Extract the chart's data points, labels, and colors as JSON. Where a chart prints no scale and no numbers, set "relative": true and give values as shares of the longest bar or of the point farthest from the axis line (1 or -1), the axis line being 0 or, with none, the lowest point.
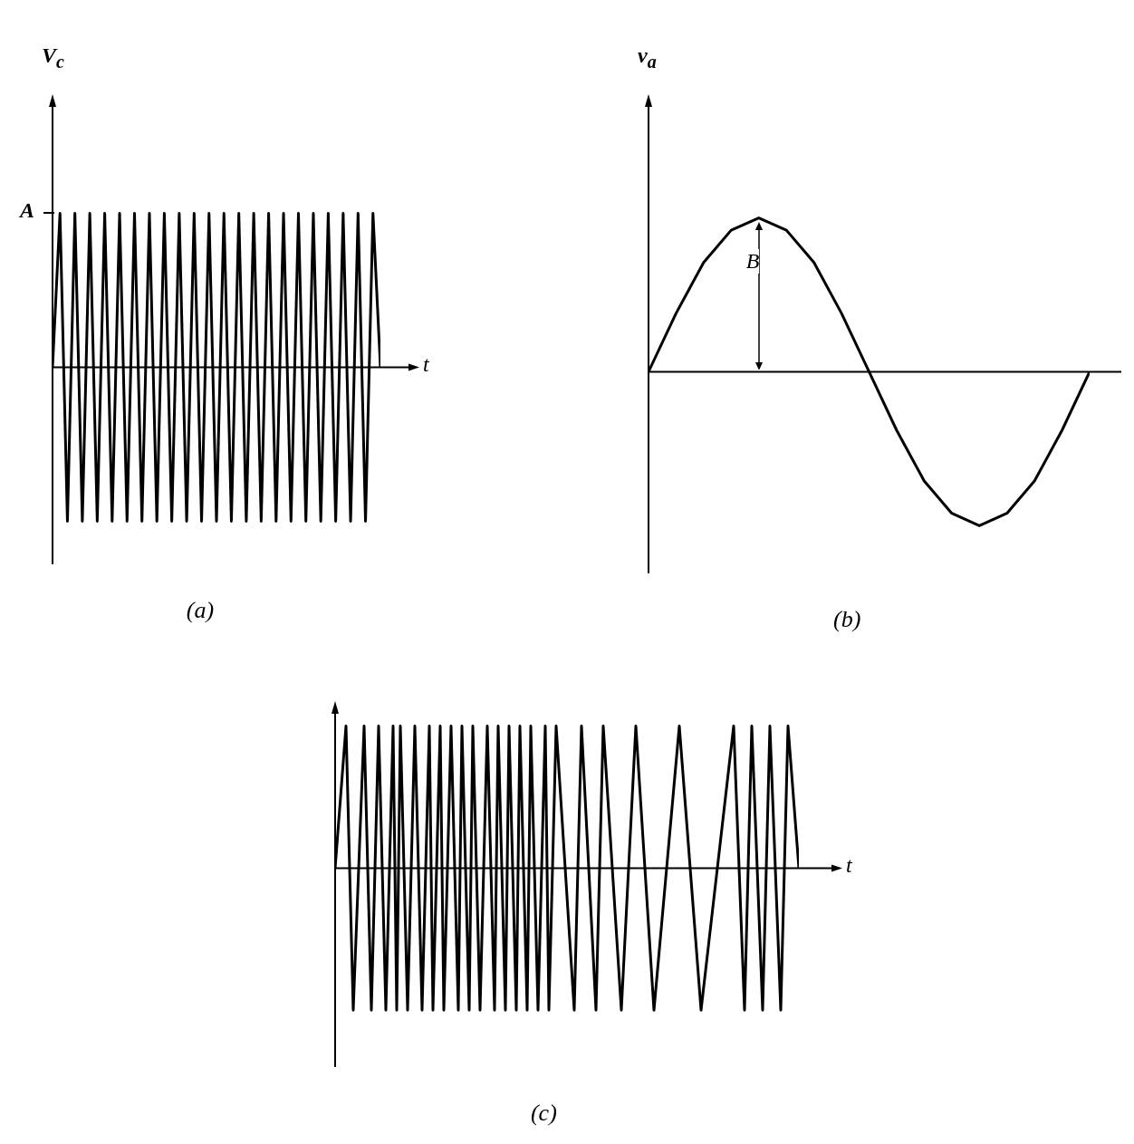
{
  "chart_data": [
    {
      "type": "line",
      "title": "(a)",
      "ylabel": "V$_{c}$",
      "xlabel": "t",
      "relative": true,
      "annotations": [
        "A"
      ],
      "categories": [
        null,
        null,
        null,
        null,
        null,
        null,
        null,
        null,
        null,
        null,
        null,
        null,
        null,
        null,
        null,
        null,
        null,
        null,
        null,
        null,
        null,
        null,
        null,
        null,
        null,
        null,
        null,
        null,
        null,
        null,
        null,
        null,
        null,
        null,
        null,
        null,
        null,
        null,
        null,
        null,
        null,
        null,
        null,
        null,
        null
      ],
      "series": [
        {
          "color": "#000000",
          "values": [
            0,
            1,
            -1,
            1,
            -1,
            1,
            -1,
            1,
            -1,
            1,
            -1,
            1,
            -1,
            1,
            -1,
            1,
            -1,
            1,
            -1,
            1,
            -1,
            1,
            -1,
            1,
            -1,
            1,
            -1,
            1,
            -1,
            1,
            -1,
            1,
            -1,
            1,
            -1,
            1,
            -1,
            1,
            -1,
            1,
            -1,
            1,
            -1,
            1,
            0
          ]
        }
      ]
    },
    {
      "type": "line",
      "title": "(b)",
      "ylabel": "v$_{a}$",
      "relative": true,
      "annotations": [
        "B"
      ],
      "categories": [
        null,
        null,
        null,
        null,
        null,
        null,
        null,
        null,
        null,
        null,
        null,
        null,
        null,
        null,
        null,
        null,
        null
      ],
      "series": [
        {
          "color": "#000000",
          "values": [
            0,
            0.38,
            0.71,
            0.92,
            1,
            0.92,
            0.71,
            0.38,
            0,
            -0.38,
            -0.71,
            -0.92,
            -1,
            -0.92,
            -0.71,
            -0.38,
            0
          ]
        }
      ]
    },
    {
      "type": "line",
      "title": "(c)",
      "xlabel": "t",
      "relative": true,
      "categories": [
        null,
        null,
        null,
        null,
        null,
        null,
        null,
        null,
        null,
        null,
        null,
        null,
        null,
        null,
        null,
        null,
        null,
        null,
        null,
        null,
        null,
        null,
        null,
        null,
        null,
        null,
        null,
        null,
        null,
        null,
        null,
        null,
        null,
        null,
        null,
        null,
        null,
        null,
        null,
        null,
        null,
        null,
        null,
        null,
        null,
        null,
        null,
        null,
        null,
        null,
        null,
        null,
        null,
        null,
        null,
        null,
        null,
        null,
        null,
        null,
        null,
        null,
        null,
        null,
        null,
        null,
        null,
        null,
        null,
        null,
        null,
        null,
        null,
        null,
        null,
        null,
        null,
        null,
        null,
        null,
        null,
        null,
        null,
        null,
        null,
        null,
        null,
        null,
        null,
        null,
        null,
        null,
        null,
        null,
        null,
        null,
        null,
        null,
        null,
        null,
        null,
        null,
        null,
        null,
        null,
        null,
        null,
        null,
        null,
        null,
        null,
        null,
        null,
        null,
        null,
        null,
        null,
        null,
        null,
        null,
        null,
        null,
        null,
        null,
        null,
        null,
        null,
        null,
        null
      ],
      "series": [
        {
          "color": "#000000",
          "values": [
            0,
            null,
            null,
            1,
            null,
            -1,
            null,
            null,
            1,
            null,
            -1,
            null,
            1,
            null,
            -1,
            null,
            1,
            -1,
            1,
            null,
            -1,
            null,
            1,
            null,
            -1,
            null,
            1,
            -1,
            null,
            1,
            -1,
            null,
            1,
            null,
            -1,
            1,
            null,
            -1,
            1,
            null,
            -1,
            null,
            1,
            null,
            -1,
            1,
            null,
            -1,
            1,
            null,
            -1,
            1,
            null,
            -1,
            1,
            null,
            -1,
            null,
            1,
            -1,
            null,
            1,
            null,
            null,
            null,
            null,
            -1,
            null,
            1,
            null,
            null,
            null,
            -1,
            null,
            1,
            null,
            null,
            null,
            null,
            -1,
            null,
            null,
            null,
            1,
            null,
            null,
            null,
            null,
            -1,
            null,
            null,
            null,
            null,
            null,
            null,
            1,
            null,
            null,
            null,
            null,
            null,
            -1,
            null,
            null,
            null,
            null,
            null,
            null,
            null,
            null,
            1,
            null,
            null,
            -1,
            null,
            1,
            null,
            null,
            -1,
            null,
            1,
            null,
            null,
            -1,
            null,
            1,
            null,
            null,
            0
          ]
        }
      ]
    }
  ]
}
